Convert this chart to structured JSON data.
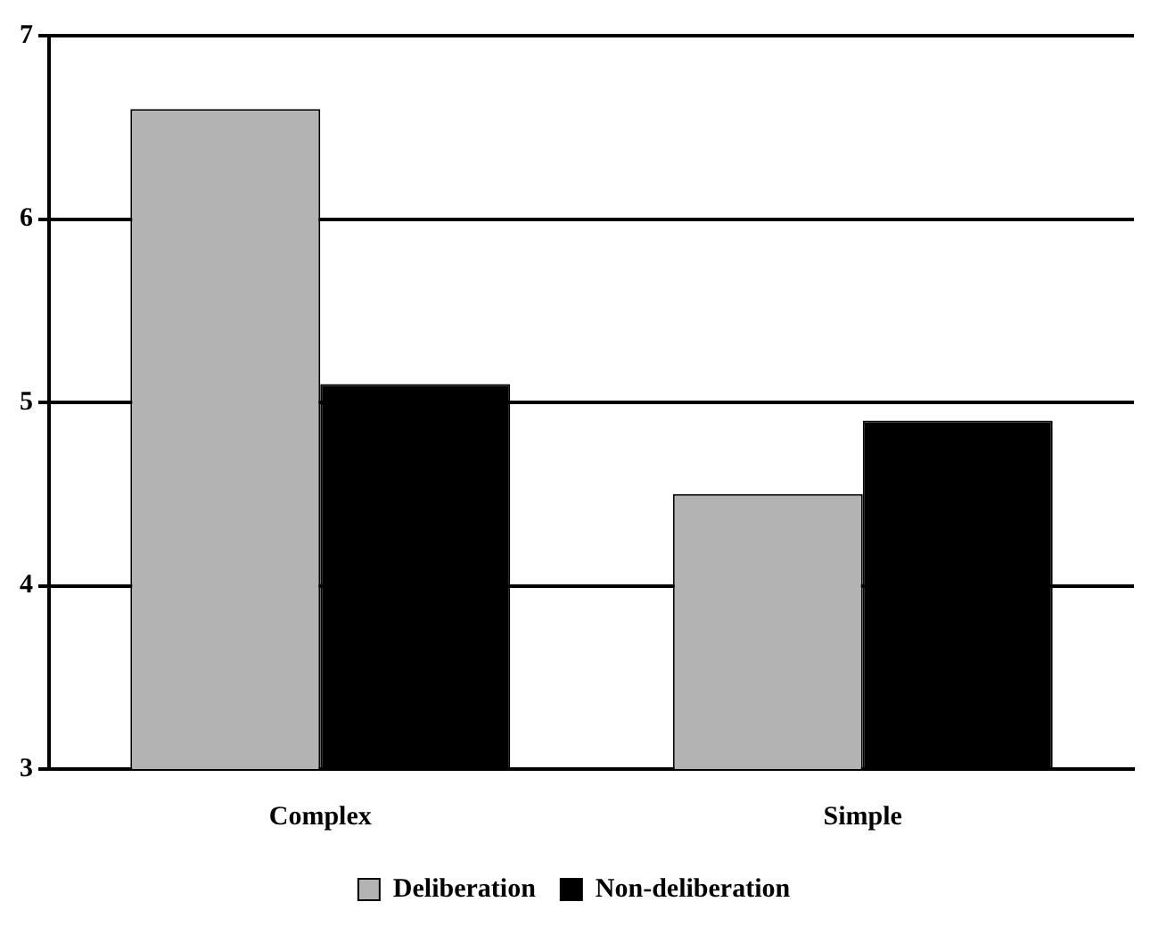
{
  "chart_data": {
    "type": "bar",
    "categories": [
      "Complex",
      "Simple"
    ],
    "series": [
      {
        "name": "Deliberation",
        "color": "#b3b3b3",
        "values": [
          6.6,
          4.5
        ]
      },
      {
        "name": "Non-deliberation",
        "color": "#000000",
        "values": [
          5.1,
          4.9
        ]
      }
    ],
    "ylim": [
      3,
      7
    ],
    "yticks": [
      3,
      4,
      5,
      6,
      7
    ],
    "grid": "y",
    "legend": "bottom"
  }
}
